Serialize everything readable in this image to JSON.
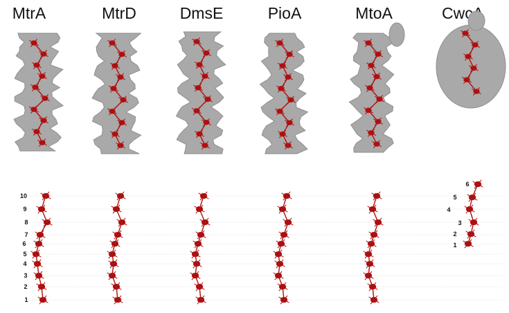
{
  "proteins": [
    {
      "name": "MtrA",
      "hemes": [
        "10",
        "9",
        "8",
        "7",
        "6",
        "5",
        "4",
        "3",
        "2",
        "1"
      ]
    },
    {
      "name": "MtrD",
      "hemes": []
    },
    {
      "name": "DmsE",
      "hemes": []
    },
    {
      "name": "PioA",
      "hemes": []
    },
    {
      "name": "MtoA",
      "hemes": []
    },
    {
      "name": "CwcA",
      "hemes": [
        "6",
        "5",
        "4",
        "3",
        "2",
        "1"
      ]
    }
  ],
  "colors": {
    "surface": "#a9a9a9",
    "heme": "#b51414",
    "guide_line": "#cfcfcf",
    "text": "#111111"
  }
}
